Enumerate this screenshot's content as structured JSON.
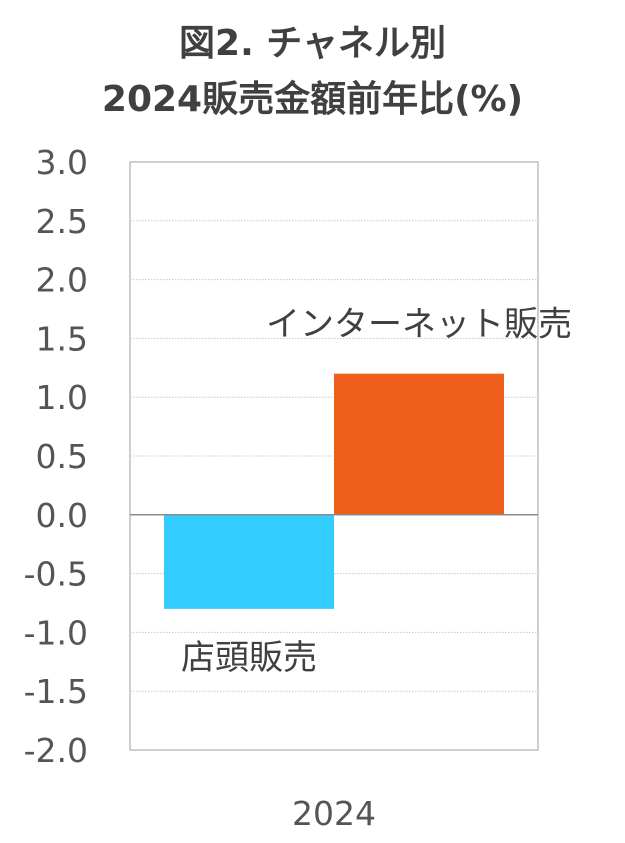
{
  "chart_data": {
    "type": "bar",
    "title_line1": "図2. チャネル別",
    "title_line2": "2024販売金額前年比(%)",
    "categories": [
      "2024"
    ],
    "series": [
      {
        "name": "店頭販売",
        "values": [
          -0.8
        ],
        "color": "#33CCFF"
      },
      {
        "name": "インターネット販売",
        "values": [
          1.2
        ],
        "color": "#EE5F1B"
      }
    ],
    "yticks": [
      "3.0",
      "2.5",
      "2.0",
      "1.5",
      "1.0",
      "0.5",
      "0.0",
      "-0.5",
      "-1.0",
      "-1.5",
      "-2.0"
    ],
    "ylim": [
      -2.0,
      3.0
    ],
    "ystep": 0.5,
    "xlabel": "",
    "ylabel": "",
    "grid": true,
    "legend": "none"
  }
}
